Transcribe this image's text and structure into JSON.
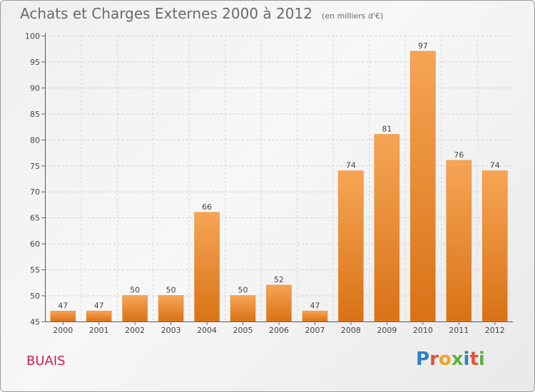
{
  "page": {
    "place_name": "BUAIS"
  },
  "logo": {
    "text": "Proxiti",
    "letter_colors": [
      "#2f7fc1",
      "#e2513a",
      "#f0a21e",
      "#5bb146",
      "#2f7fc1",
      "#e2513a",
      "#5bb146"
    ]
  },
  "chart_data": {
    "type": "bar",
    "title": "Achats et Charges Externes 2000 à 2012",
    "subtitle": "(en milliers d'€)",
    "xlabel": "",
    "ylabel": "",
    "categories": [
      "2000",
      "2001",
      "2002",
      "2003",
      "2004",
      "2005",
      "2006",
      "2007",
      "2008",
      "2009",
      "2010",
      "2011",
      "2012"
    ],
    "values": [
      47,
      47,
      50,
      50,
      66,
      50,
      52,
      47,
      74,
      81,
      97,
      76,
      74
    ],
    "ylim": [
      45,
      100
    ],
    "yticks": [
      45,
      50,
      55,
      60,
      65,
      70,
      75,
      80,
      85,
      90,
      95,
      100
    ],
    "grid": true,
    "bar_color": "#ee8f35"
  }
}
